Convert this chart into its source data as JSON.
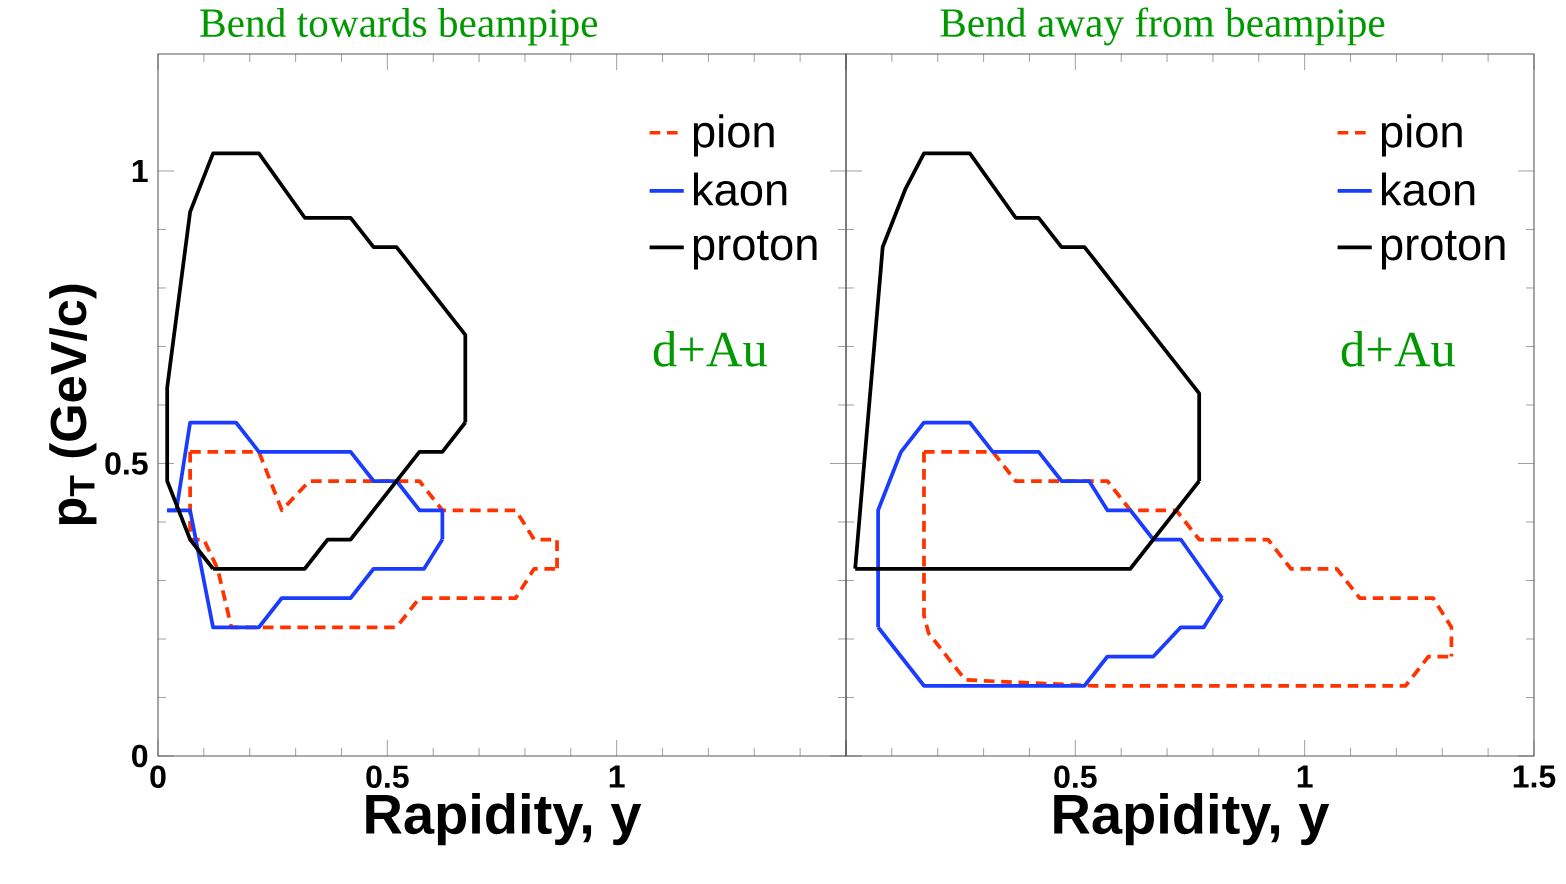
{
  "chart_data": [
    {
      "type": "line",
      "title": "Bend towards beampipe",
      "xlabel": "Rapidity, y",
      "ylabel": "p$_{T}$ (GeV/c)",
      "xlim": [
        0,
        1.5
      ],
      "ylim": [
        0,
        1.2
      ],
      "xticks": [
        0,
        0.5,
        1,
        {
          "value": 1.5,
          "label": null
        }
      ],
      "yticks": [
        0,
        0.5,
        1
      ],
      "legend": "top right",
      "marker": "none",
      "grid": false,
      "annotations": [
        "d+Au"
      ],
      "series": [
        {
          "name": "pion",
          "color": "#ff3300",
          "line_style": "dashed",
          "x": [
            0.07,
            0.22,
            0.27,
            0.33,
            0.57,
            0.62,
            0.78,
            0.82,
            0.87,
            0.87
          ],
          "values": [
            0.52,
            0.52,
            0.42,
            0.47,
            0.47,
            0.42,
            0.42,
            0.37,
            0.37,
            0.32
          ]
        },
        {
          "color": "#ff3300",
          "line_style": "dashed",
          "x": [
            0.07,
            0.07,
            0.1,
            0.13,
            0.16,
            0.52,
            0.57,
            0.78,
            0.82,
            0.87
          ],
          "values": [
            0.52,
            0.37,
            0.37,
            0.32,
            0.22,
            0.22,
            0.27,
            0.27,
            0.32,
            0.32
          ]
        },
        {
          "name": "kaon",
          "color": "#1a3cff",
          "line_style": "solid",
          "x": [
            0.02,
            0.04,
            0.07,
            0.17,
            0.22,
            0.42,
            0.47,
            0.52,
            0.57,
            0.62,
            0.62
          ],
          "values": [
            0.42,
            0.42,
            0.57,
            0.57,
            0.52,
            0.52,
            0.47,
            0.47,
            0.42,
            0.42,
            0.37
          ]
        },
        {
          "color": "#1a3cff",
          "line_style": "solid",
          "x": [
            0.02,
            0.07,
            0.12,
            0.22,
            0.27,
            0.42,
            0.47,
            0.58,
            0.62
          ],
          "values": [
            0.42,
            0.42,
            0.22,
            0.22,
            0.27,
            0.27,
            0.32,
            0.32,
            0.37
          ]
        },
        {
          "name": "proton",
          "color": "#000000",
          "line_style": "solid",
          "x": [
            0.12,
            0.07,
            0.02,
            0.02,
            0.07,
            0.12,
            0.22,
            0.32,
            0.42,
            0.47,
            0.52,
            0.57,
            0.67,
            0.67
          ],
          "values": [
            0.32,
            0.37,
            0.47,
            0.63,
            0.93,
            1.03,
            1.03,
            0.92,
            0.92,
            0.87,
            0.87,
            0.82,
            0.72,
            0.57
          ]
        },
        {
          "color": "#000000",
          "line_style": "solid",
          "x": [
            0.12,
            0.32,
            0.37,
            0.42,
            0.57,
            0.62,
            0.67
          ],
          "values": [
            0.32,
            0.32,
            0.37,
            0.37,
            0.52,
            0.52,
            0.57
          ]
        }
      ]
    },
    {
      "type": "line",
      "title": "Bend away from beampipe",
      "xlabel": "Rapidity, y",
      "xlim": [
        0,
        1.5
      ],
      "ylim": [
        0,
        1.2
      ],
      "xticks": [
        {
          "value": 0,
          "label": null
        },
        0.5,
        1,
        1.5
      ],
      "yticks": [
        {
          "value": 0,
          "label": null
        },
        {
          "value": 0.5,
          "label": null
        },
        {
          "value": 1,
          "label": null
        }
      ],
      "tick_labels": "x",
      "legend": "top right",
      "marker": "none",
      "grid": false,
      "annotations": [
        "d+Au"
      ],
      "series": [
        {
          "name": "pion",
          "color": "#ff3300",
          "line_style": "dashed",
          "x": [
            0.17,
            0.32,
            0.37,
            0.57,
            0.62,
            0.72,
            0.77,
            0.92,
            0.97,
            1.07,
            1.12,
            1.28,
            1.32,
            1.32
          ],
          "values": [
            0.52,
            0.52,
            0.47,
            0.47,
            0.42,
            0.42,
            0.37,
            0.37,
            0.32,
            0.32,
            0.27,
            0.27,
            0.22,
            0.17
          ]
        },
        {
          "color": "#ff3300",
          "line_style": "dashed",
          "x": [
            0.17,
            0.17,
            0.18,
            0.26,
            0.54,
            1.22,
            1.27,
            1.32
          ],
          "values": [
            0.52,
            0.24,
            0.21,
            0.13,
            0.12,
            0.12,
            0.17,
            0.17
          ]
        },
        {
          "name": "kaon",
          "color": "#1a3cff",
          "line_style": "solid",
          "x": [
            0.07,
            0.07,
            0.12,
            0.17,
            0.27,
            0.32,
            0.42,
            0.47,
            0.53,
            0.57,
            0.62,
            0.67,
            0.73,
            0.82
          ],
          "values": [
            0.22,
            0.42,
            0.52,
            0.57,
            0.57,
            0.52,
            0.52,
            0.47,
            0.47,
            0.42,
            0.42,
            0.37,
            0.37,
            0.27
          ]
        },
        {
          "color": "#1a3cff",
          "line_style": "solid",
          "x": [
            0.07,
            0.17,
            0.52,
            0.57,
            0.67,
            0.73,
            0.78,
            0.82
          ],
          "values": [
            0.22,
            0.12,
            0.12,
            0.17,
            0.17,
            0.22,
            0.22,
            0.27
          ]
        },
        {
          "name": "proton",
          "color": "#000000",
          "line_style": "solid",
          "x": [
            0.02,
            0.08,
            0.13,
            0.17,
            0.27,
            0.37,
            0.42,
            0.47,
            0.52,
            0.77,
            0.77
          ],
          "values": [
            0.32,
            0.87,
            0.97,
            1.03,
            1.03,
            0.92,
            0.92,
            0.87,
            0.87,
            0.62,
            0.47
          ]
        },
        {
          "color": "#000000",
          "line_style": "solid",
          "x": [
            0.02,
            0.62,
            0.77
          ],
          "values": [
            0.32,
            0.32,
            0.47
          ]
        }
      ]
    }
  ]
}
